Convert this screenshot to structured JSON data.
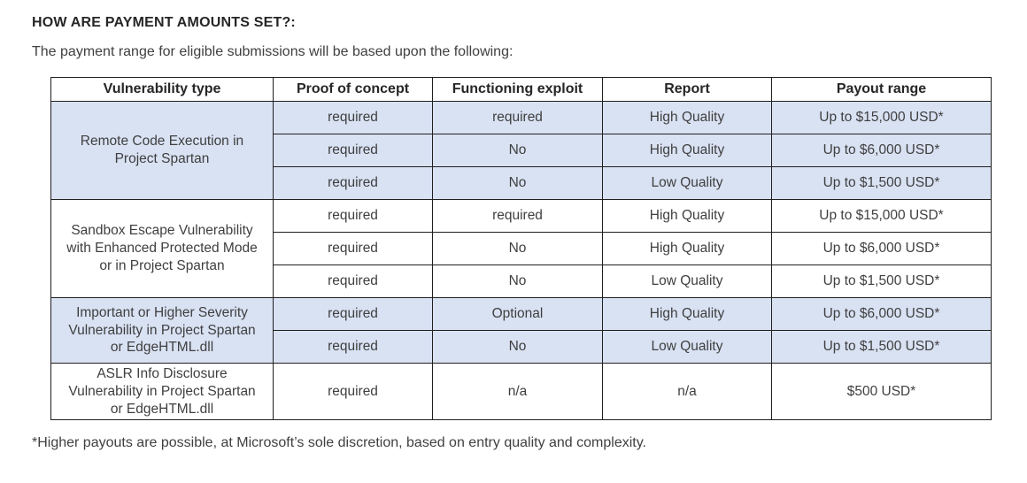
{
  "page": {
    "heading": "HOW ARE PAYMENT AMOUNTS SET?:",
    "intro": "The payment range for eligible submissions will be based upon the following:",
    "footnote": "*Higher payouts are possible, at Microsoft’s sole discretion, based on entry quality and complexity."
  },
  "table": {
    "columns": [
      "Vulnerability type",
      "Proof of concept",
      "Functioning exploit",
      "Report",
      "Payout range"
    ],
    "groups": [
      {
        "vulnerability": "Remote Code Execution in Project Spartan",
        "shaded": true,
        "rows": [
          {
            "proof_of_concept": "required",
            "functioning_exploit": "required",
            "report": "High Quality",
            "payout": "Up to $15,000 USD*"
          },
          {
            "proof_of_concept": "required",
            "functioning_exploit": "No",
            "report": "High Quality",
            "payout": "Up to $6,000 USD*"
          },
          {
            "proof_of_concept": "required",
            "functioning_exploit": "No",
            "report": "Low Quality",
            "payout": "Up to $1,500 USD*"
          }
        ]
      },
      {
        "vulnerability": "Sandbox Escape Vulnerability with Enhanced Protected Mode or in Project Spartan",
        "shaded": false,
        "rows": [
          {
            "proof_of_concept": "required",
            "functioning_exploit": "required",
            "report": "High Quality",
            "payout": "Up to $15,000 USD*"
          },
          {
            "proof_of_concept": "required",
            "functioning_exploit": "No",
            "report": "High Quality",
            "payout": "Up to $6,000 USD*"
          },
          {
            "proof_of_concept": "required",
            "functioning_exploit": "No",
            "report": "Low Quality",
            "payout": "Up to $1,500 USD*"
          }
        ]
      },
      {
        "vulnerability": "Important or Higher Severity Vulnerability in Project Spartan or EdgeHTML.dll",
        "shaded": true,
        "rows": [
          {
            "proof_of_concept": "required",
            "functioning_exploit": "Optional",
            "report": "High Quality",
            "payout": "Up to $6,000 USD*"
          },
          {
            "proof_of_concept": "required",
            "functioning_exploit": "No",
            "report": "Low Quality",
            "payout": "Up to $1,500 USD*"
          }
        ]
      },
      {
        "vulnerability": "ASLR Info Disclosure Vulnerability in Project Spartan or EdgeHTML.dll",
        "shaded": false,
        "rows": [
          {
            "proof_of_concept": "required",
            "functioning_exploit": "n/a",
            "report": "n/a",
            "payout": "$500 USD*"
          }
        ]
      }
    ],
    "colors": {
      "shaded_row_bg": "#d9e2f3",
      "border": "#1f1f1f",
      "cell_text": "#3f3f3f",
      "heading_text": "#262626"
    }
  }
}
